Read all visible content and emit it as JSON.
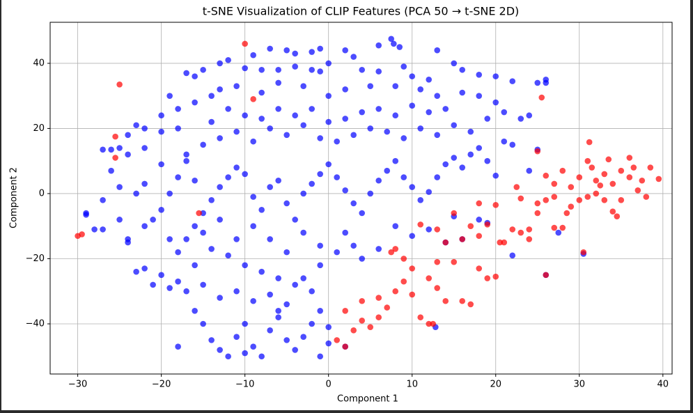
{
  "chart_data": {
    "type": "scatter",
    "title": "t-SNE Visualization of CLIP Features (PCA 50 → t-SNE 2D)",
    "x_label": "Component 1",
    "y_label": "Component 2",
    "xlim": [
      -33.3,
      41.1
    ],
    "ylim": [
      -55.4,
      52.6
    ],
    "xticks": [
      {
        "value": -30,
        "label": "−30"
      },
      {
        "value": -20,
        "label": "−20"
      },
      {
        "value": -10,
        "label": "−10"
      },
      0,
      10,
      20,
      30,
      40
    ],
    "yticks": [
      {
        "value": -40,
        "label": "−40"
      },
      {
        "value": -20,
        "label": "−20"
      },
      0,
      20,
      40
    ],
    "grid": true,
    "series": [
      {
        "color": "#0000ff",
        "x": [
          7.5,
          7.8,
          6,
          8.5,
          -5,
          -7,
          -4,
          -2,
          -1,
          2,
          13,
          3,
          -9,
          -12,
          -13,
          -15,
          -17,
          -16,
          -10,
          -8,
          -6,
          -4,
          -2,
          0,
          -1,
          4,
          6,
          9,
          10,
          12,
          15,
          16,
          18,
          20,
          22,
          25,
          26,
          26,
          11,
          13,
          8,
          5,
          2,
          0,
          -3,
          -6,
          -8,
          -11,
          -13,
          -14,
          -16,
          -19,
          -18,
          -20,
          -22,
          -23,
          -24,
          -25,
          -26,
          -27,
          -24,
          -22,
          -20,
          -18,
          -17,
          -15,
          -13,
          -11,
          -9,
          -7,
          -5,
          -3,
          -1,
          1,
          3,
          5,
          7,
          9,
          11,
          13,
          15,
          17,
          19,
          21,
          23,
          24,
          20,
          18,
          16,
          14,
          12,
          10,
          8,
          6,
          4,
          2,
          0,
          -2,
          -4,
          -6,
          -8,
          -10,
          -12,
          -14,
          -27,
          -29,
          -29,
          -28,
          -27,
          -25,
          -24,
          -24,
          -23,
          -22,
          -21,
          -20,
          -19,
          -18,
          -17,
          -16,
          -15,
          -14,
          -13,
          -12,
          -11,
          -10,
          -9,
          -8,
          -7,
          -6,
          -5,
          -4,
          -3,
          -2,
          -1,
          0,
          1,
          2,
          3,
          4,
          5,
          6,
          7,
          8,
          9,
          10,
          11,
          12,
          13,
          14,
          15,
          16,
          17,
          18,
          19,
          20,
          21,
          22,
          24,
          25,
          -22,
          -20,
          -21,
          -18,
          -17,
          -19,
          -16,
          -23,
          -26,
          -25,
          -20,
          -22,
          -19,
          -17,
          -16,
          -15,
          -14,
          -13,
          -12,
          -11,
          -10,
          -9,
          -8,
          -7,
          -6,
          -5,
          -4,
          -3,
          -2,
          -1,
          0,
          0,
          -2,
          -4,
          -6,
          -8,
          -10,
          -12,
          -14,
          -16,
          -18,
          -15,
          -13,
          -11,
          -9,
          -7,
          -5,
          -3,
          -1,
          1,
          2,
          3,
          4,
          6,
          8,
          10,
          12,
          14,
          16,
          18,
          19,
          22,
          27.5,
          30.5,
          15,
          -7,
          -5,
          -3,
          -1,
          -9,
          -11,
          -13,
          -15,
          -18,
          -6,
          -1,
          -10,
          2,
          12.8,
          26
        ],
        "values": [
          47.5,
          46,
          45.5,
          45,
          44,
          44.5,
          43,
          43.5,
          44.5,
          44,
          44,
          42,
          42.5,
          41,
          40,
          38,
          37,
          36,
          38.5,
          38,
          38,
          39,
          38,
          40,
          37.5,
          38,
          37.5,
          39,
          36,
          35,
          40,
          38,
          36.5,
          36,
          34.5,
          34,
          35,
          34,
          32,
          30,
          33,
          33,
          32,
          30,
          33,
          34,
          31,
          33,
          32,
          30,
          28,
          30,
          26,
          24,
          20,
          21,
          18,
          14,
          13.5,
          13.5,
          12,
          14,
          19,
          20,
          12,
          15,
          17,
          19,
          16,
          20,
          18,
          21,
          17,
          16,
          18,
          20,
          19,
          17,
          20,
          18,
          21,
          19,
          23,
          25,
          23,
          24,
          28,
          30,
          31,
          26,
          25,
          27,
          24,
          26,
          25,
          23,
          22,
          26,
          24,
          26,
          23,
          24,
          26,
          22,
          -2,
          -6,
          -6.5,
          -11,
          -11,
          -8,
          -14,
          -15,
          -24,
          -23,
          -28,
          -25,
          -29,
          -18,
          -14,
          -10,
          -6,
          -2,
          2,
          5,
          8,
          6,
          -1,
          -5,
          2,
          4,
          -3,
          -8,
          0,
          3,
          6,
          9,
          5,
          1,
          -3,
          -6,
          0,
          4,
          7,
          10,
          5,
          2,
          -2,
          0.5,
          5,
          9,
          11,
          8,
          12,
          14,
          10,
          5.5,
          16,
          15,
          7,
          13.5,
          3,
          -5,
          -8,
          5,
          10,
          0,
          4,
          0,
          7,
          2,
          9,
          -10,
          -14,
          -30,
          -36,
          -40,
          -45,
          -48,
          -50,
          -44,
          -40,
          -47,
          -50,
          -42,
          -36,
          -45,
          -48,
          -44,
          -40,
          -50,
          -41,
          -46,
          -30,
          -28,
          -26,
          -24,
          -22,
          -19,
          -17,
          -22,
          -27,
          -28,
          -32,
          -30,
          -33,
          -31,
          -34,
          -26,
          -22,
          -18,
          -12,
          -16,
          -20,
          -17,
          -10,
          -13,
          -11,
          -15,
          -14,
          -8,
          -9,
          -19,
          -12,
          -18.5,
          -7,
          -14,
          -18,
          -12,
          -16,
          -10,
          -14,
          -8,
          -12,
          -47,
          -38,
          -36,
          -49,
          -47,
          -41,
          -25
        ]
      },
      {
        "color": "#ff0000",
        "x": [
          -10,
          -25,
          -25.5,
          -25.5,
          -30,
          -29.5,
          -15.5,
          -9,
          25.5,
          25,
          31.2,
          1,
          2,
          2,
          3,
          4,
          5,
          6,
          7,
          8,
          9,
          10,
          11,
          12,
          12.5,
          13,
          14,
          15,
          16,
          17,
          18,
          19,
          20,
          8,
          9,
          10,
          11,
          13,
          14,
          15,
          16,
          17,
          18,
          19,
          20,
          21,
          22,
          23,
          24,
          22.5,
          23,
          25,
          25,
          26,
          26,
          27,
          27,
          28,
          28,
          28.5,
          29,
          29,
          30,
          30,
          30.5,
          31,
          31.5,
          32,
          32,
          33,
          33,
          34,
          34,
          34.5,
          35,
          35,
          36,
          36,
          36.5,
          37,
          37.5,
          38,
          38.5,
          39.5,
          33.5,
          32.5,
          31,
          27,
          24,
          4,
          6,
          7.5,
          13,
          18,
          20.5,
          12,
          26
        ],
        "values": [
          46,
          33.5,
          17.5,
          11,
          -13,
          -12.5,
          -6,
          29,
          29.5,
          13,
          15.8,
          -45,
          -47,
          -36,
          -42,
          -33,
          -41,
          -38,
          -35,
          -30,
          -27,
          -31,
          -38,
          -40,
          -40,
          -29,
          -33,
          -21,
          -33,
          -34,
          -23,
          -26,
          -25.5,
          -17,
          -20,
          -23,
          -9.5,
          -21,
          -15,
          -6,
          -14,
          -10,
          -13,
          -9.5,
          -3.5,
          -15,
          -11,
          -12,
          -11,
          2,
          -1.5,
          -3,
          -6,
          -2,
          5.5,
          -10.5,
          3,
          -10.5,
          7,
          -6,
          2,
          -4,
          5,
          -2,
          -18,
          10,
          8,
          4,
          0,
          6,
          -2,
          3,
          -5.5,
          -7,
          7,
          -2,
          5,
          11,
          8,
          1,
          4,
          -1,
          8,
          4.5,
          10.5,
          2.5,
          -1,
          -1,
          -14,
          -39,
          -32,
          -18,
          -11,
          -3,
          -15,
          -26,
          -25
        ]
      }
    ]
  }
}
